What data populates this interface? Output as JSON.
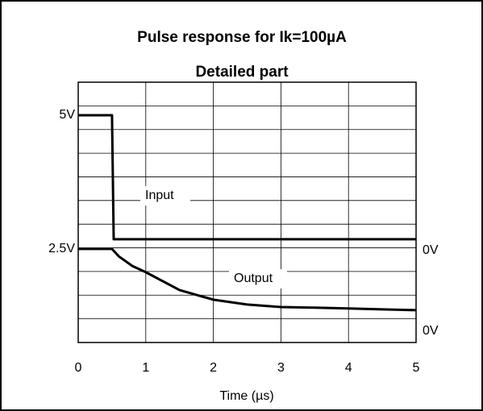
{
  "chart_data": {
    "type": "line",
    "title": "Pulse response for Ik=100µA",
    "subtitle": "Detailed part",
    "x_label": "Time (µs)",
    "xlim": [
      0,
      5
    ],
    "xticks": [
      0,
      1,
      2,
      3,
      4,
      5
    ],
    "ylim": [
      -4.16,
      6.33
    ],
    "yticks": [
      {
        "value": 5,
        "label": "5V",
        "side": "left"
      },
      {
        "value": 0,
        "label": "0V",
        "side": "right"
      }
    ],
    "y2lim": [
      -0.8,
      8.38
    ],
    "y2ticks": [
      {
        "value": 2.5,
        "label": "2.5V",
        "side": "left"
      },
      {
        "value": 0,
        "label": "0V",
        "side": "right"
      }
    ],
    "grid": true,
    "series": [
      {
        "name": "Input",
        "color": "#000000",
        "x": [
          0,
          0.5,
          0.525,
          0.55,
          1,
          2,
          3,
          4,
          5
        ],
        "values": [
          5,
          5,
          0,
          0,
          0,
          0,
          0,
          0,
          0
        ]
      },
      {
        "name": "Output",
        "color": "#000000",
        "axis": "y2",
        "x": [
          0,
          0.5,
          0.6,
          0.8,
          1,
          1.5,
          2,
          2.5,
          3,
          3.5,
          4,
          4.5,
          5
        ],
        "values": [
          2.5,
          2.5,
          2.24,
          1.9,
          1.68,
          1.05,
          0.71,
          0.54,
          0.45,
          0.43,
          0.4,
          0.37,
          0.34
        ]
      }
    ]
  }
}
